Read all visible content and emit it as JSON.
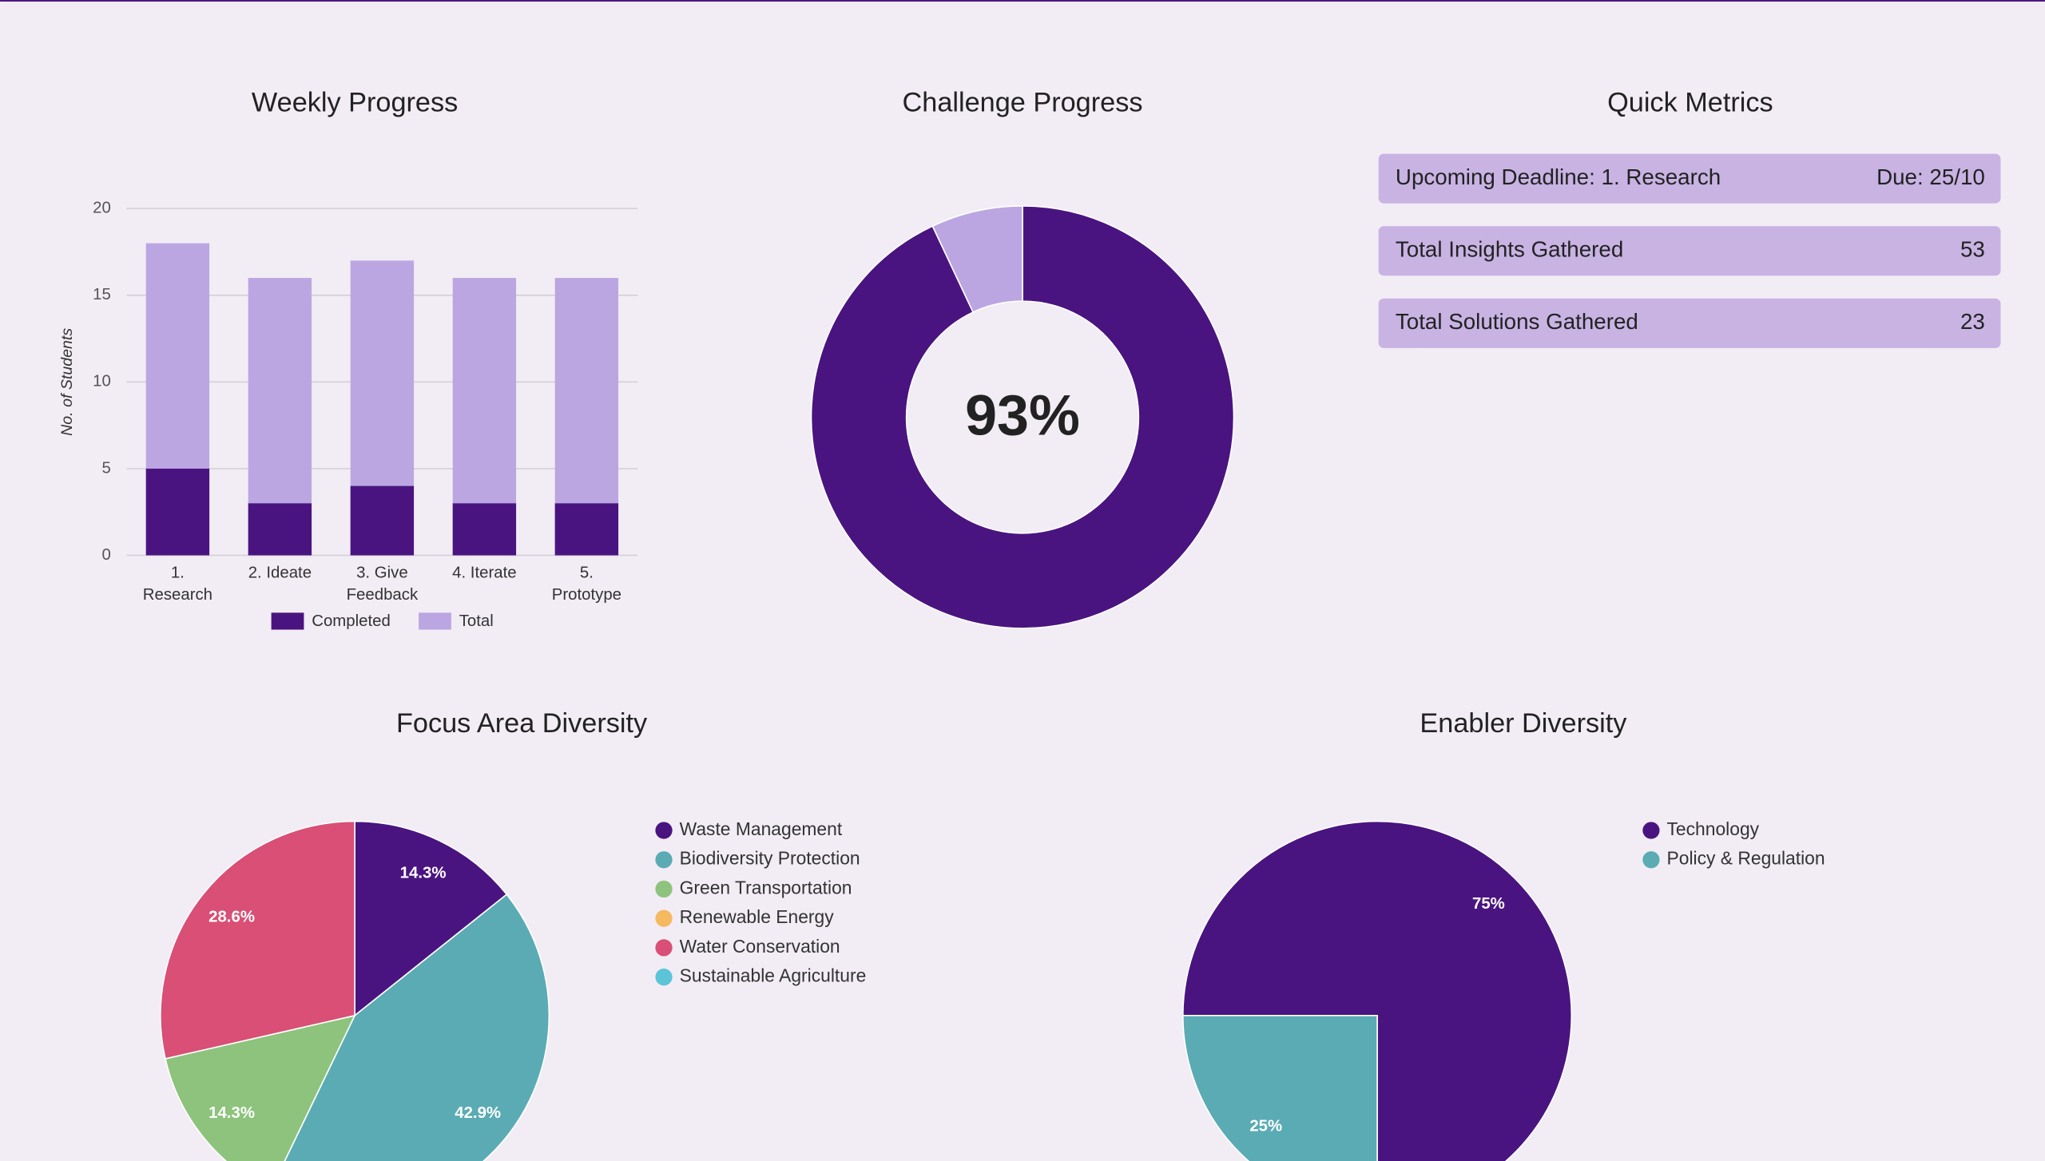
{
  "chart_data": [
    {
      "type": "bar",
      "title": "Weekly Progress",
      "y_label": "No. of Students",
      "categories": [
        "1. Research",
        "2. Ideate",
        "3. Give Feedback",
        "4. Iterate",
        "5. Prototype"
      ],
      "series": [
        {
          "name": "Completed",
          "color": "#4a1480",
          "values": [
            5,
            3,
            4,
            3,
            3
          ]
        },
        {
          "name": "Total",
          "color": "#bba6e2",
          "values": [
            18,
            16,
            17,
            16,
            16
          ]
        }
      ],
      "ylim": [
        0,
        20
      ],
      "yticks": [
        0,
        5,
        10,
        15,
        20
      ],
      "grid": true
    },
    {
      "type": "doughnut",
      "title": "Challenge Progress",
      "values": [
        93,
        7
      ],
      "colors": [
        "#4a1480",
        "#bba6e2"
      ],
      "center_label": "93%"
    },
    {
      "type": "pie",
      "title": "Focus Area Diversity",
      "categories": [
        "Waste Management",
        "Biodiversity Protection",
        "Green Transportation",
        "Renewable Energy",
        "Water Conservation",
        "Sustainable Agriculture"
      ],
      "values": [
        14.3,
        42.9,
        14.3,
        0,
        28.6,
        0
      ],
      "value_labels": [
        "14.3%",
        "42.9%",
        "14.3%",
        null,
        "28.6%",
        null
      ],
      "colors": [
        "#4a1480",
        "#5aabb4",
        "#8dc37c",
        "#f5b960",
        "#d94f75",
        "#5bc4d8"
      ]
    },
    {
      "type": "pie",
      "title": "Enabler Diversity",
      "categories": [
        "Technology",
        "Policy & Regulation"
      ],
      "values": [
        75,
        25
      ],
      "value_labels": [
        "75%",
        "25%"
      ],
      "colors": [
        "#4a1480",
        "#5aabb4"
      ]
    }
  ],
  "metrics": {
    "title": "Quick Metrics",
    "rows": [
      {
        "label": "Upcoming Deadline: 1. Research",
        "value": "Due: 25/10"
      },
      {
        "label": "Total Insights Gathered",
        "value": 53
      },
      {
        "label": "Total Solutions Gathered",
        "value": 23
      }
    ]
  }
}
